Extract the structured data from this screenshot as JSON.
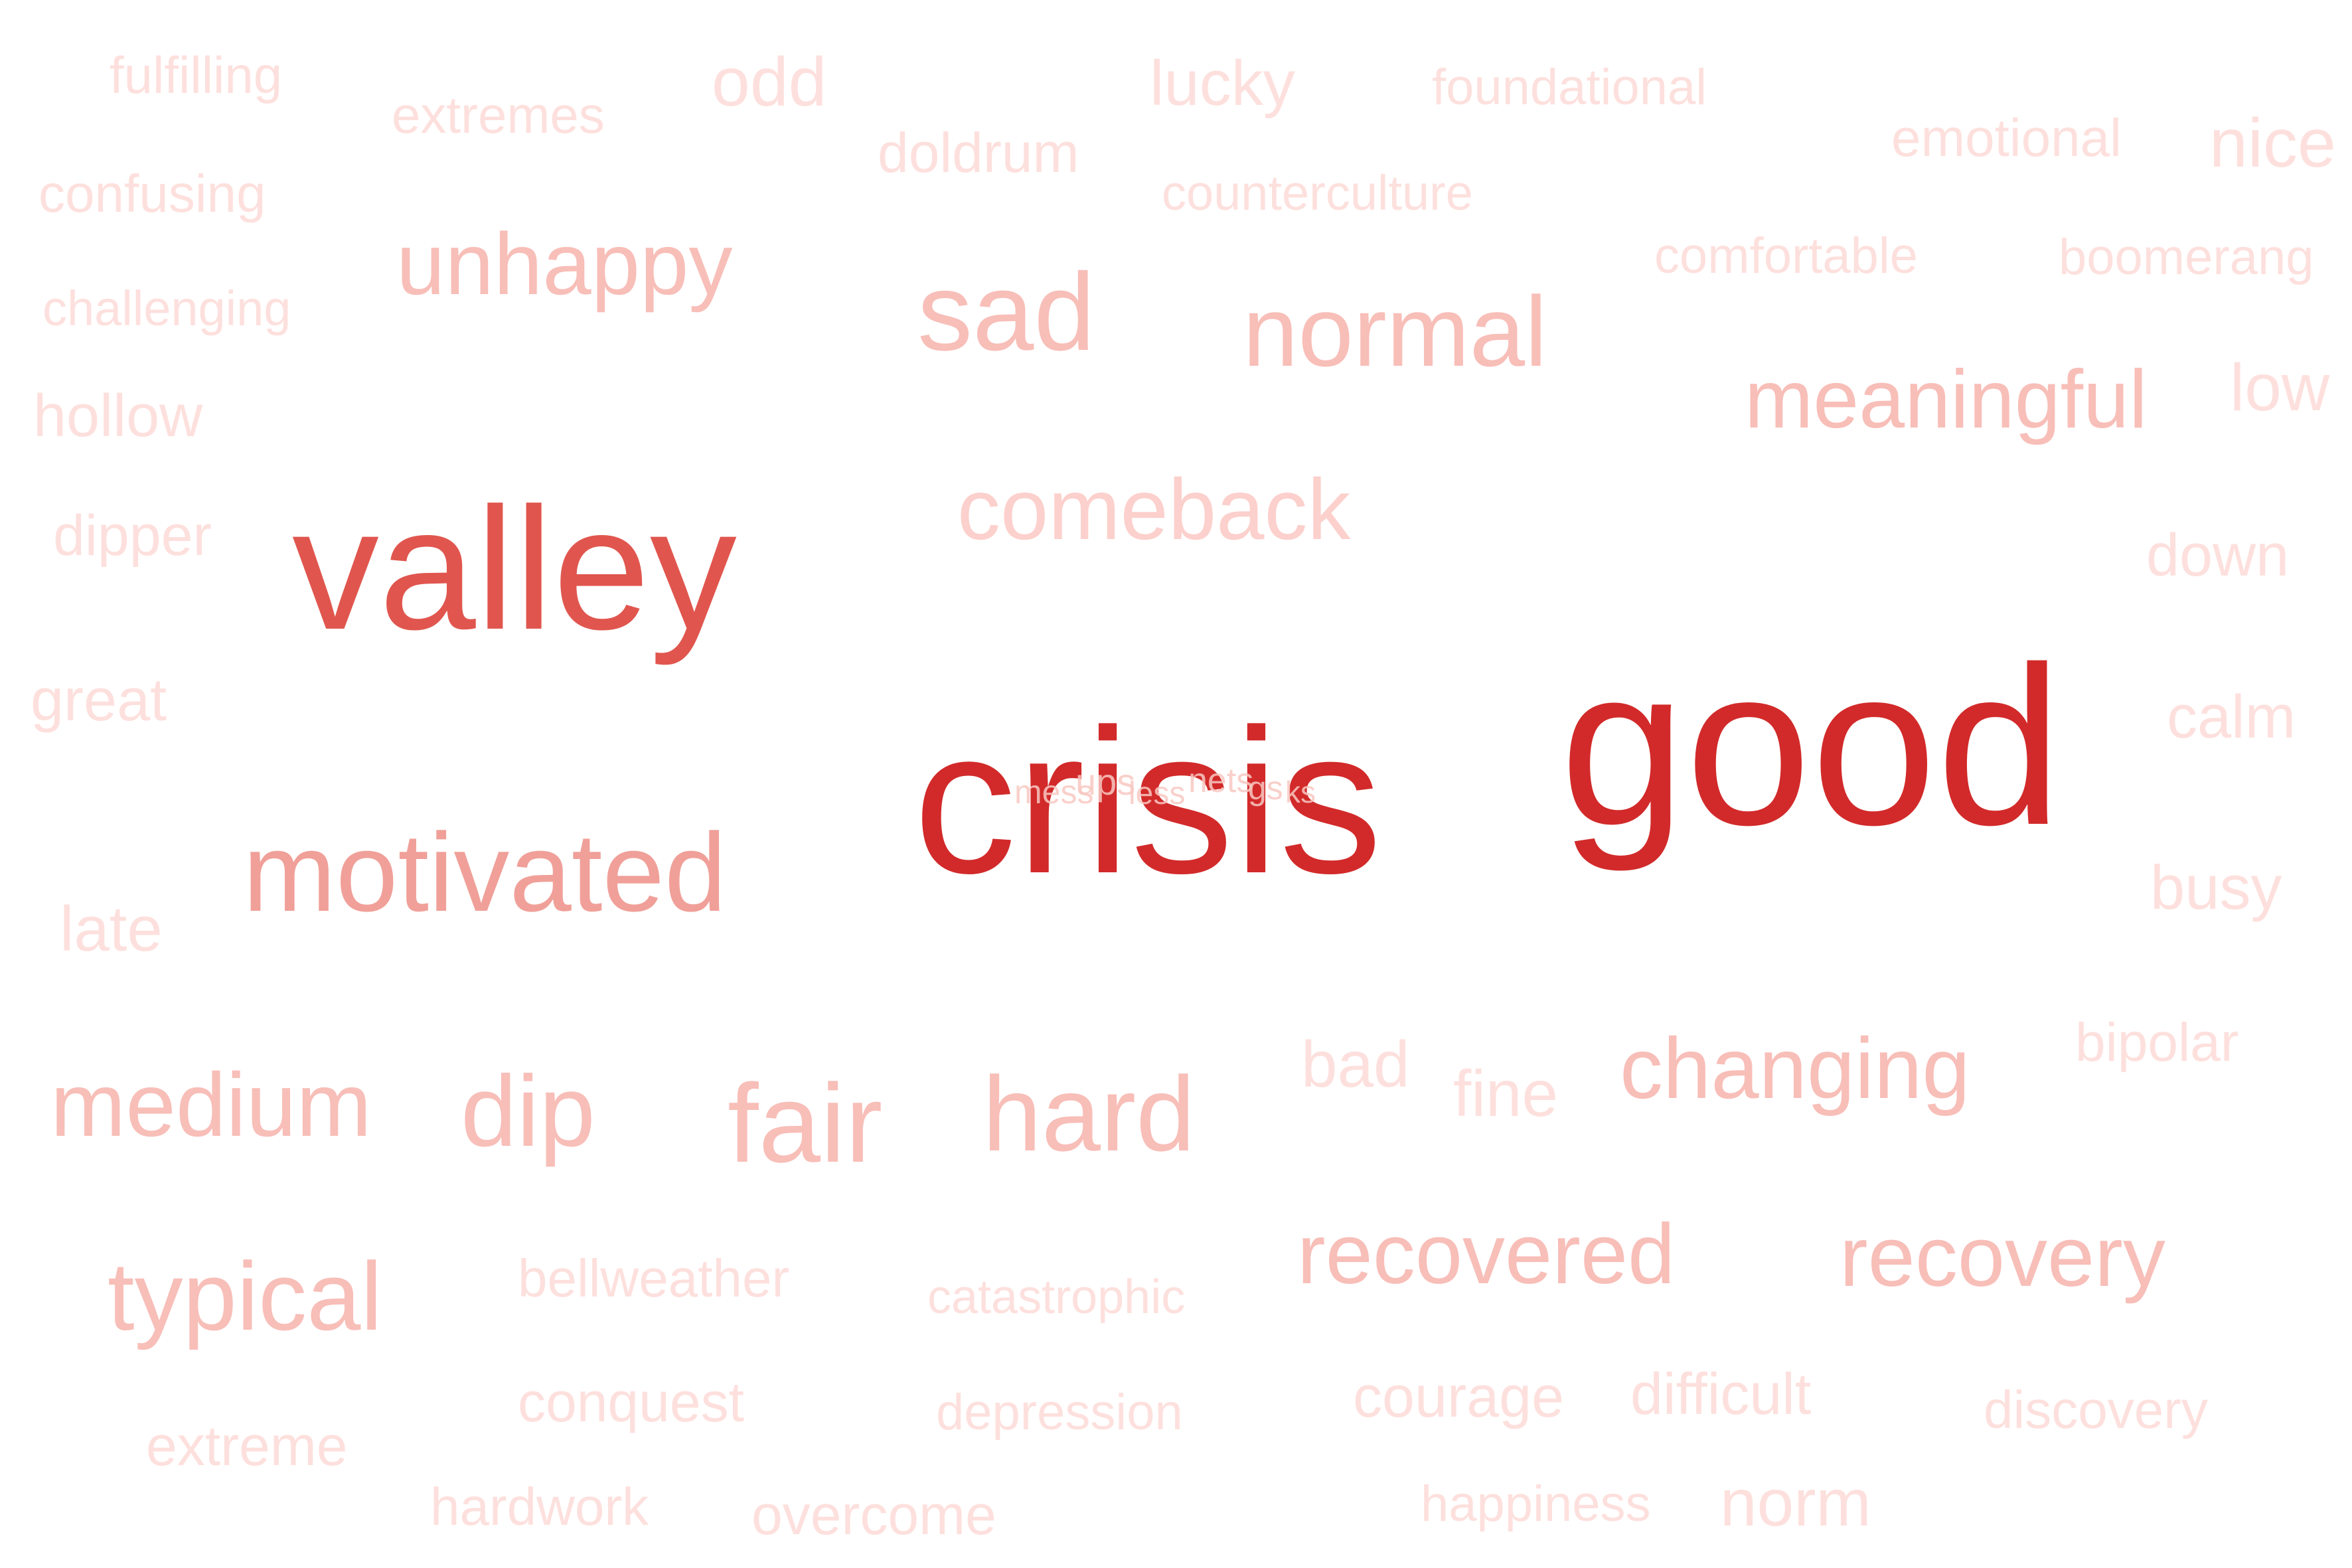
{
  "words": {
    "fulfilling": "fulfilling",
    "extremes": "extremes",
    "odd": "odd",
    "lucky": "lucky",
    "foundational": "foundational",
    "emotional": "emotional",
    "nice": "nice",
    "doldrum": "doldrum",
    "confusing": "confusing",
    "counterculture": "counterculture",
    "comfortable": "comfortable",
    "boomerang": "boomerang",
    "unhappy": "unhappy",
    "challenging": "challenging",
    "sad": "sad",
    "normal": "normal",
    "hollow": "hollow",
    "meaningful": "meaningful",
    "low": "low",
    "comeback": "comeback",
    "dipper": "dipper",
    "valley": "valley",
    "down": "down",
    "great": "great",
    "good": "good",
    "calm": "calm",
    "crisis": "crisis",
    "motivated": "motivated",
    "busy": "busy",
    "late": "late",
    "bipolar": "bipolar",
    "bad": "bad",
    "fine": "fine",
    "changing": "changing",
    "medium": "medium",
    "dip": "dip",
    "fair": "fair",
    "hard": "hard",
    "recovered": "recovered",
    "recovery": "recovery",
    "typical": "typical",
    "bellweather": "bellweather",
    "catastrophic": "catastrophic",
    "conquest": "conquest",
    "depression": "depression",
    "courage": "courage",
    "difficult": "difficult",
    "discovery": "discovery",
    "extreme": "extreme",
    "hardwork": "hardwork",
    "overcome": "overcome",
    "happiness": "happiness",
    "norm": "norm"
  },
  "tiny_words": [
    "mess",
    "ups",
    "less",
    "nets",
    "gs",
    "ks"
  ],
  "colors": {
    "tier1": "#fde0dd",
    "tier2": "#fcd0cc",
    "tier3": "#f8beb8",
    "tier4": "#f0a099",
    "tier5": "#e0564e",
    "tier6": "#d22a2a",
    "background": "#ffffff"
  }
}
